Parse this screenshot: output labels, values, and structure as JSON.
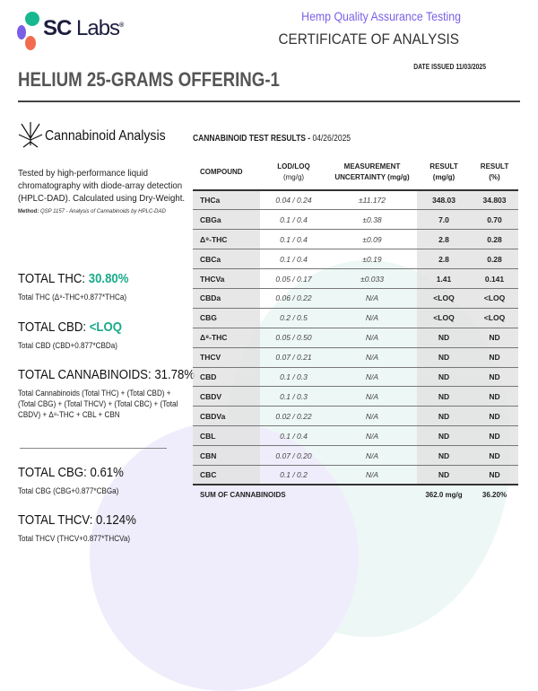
{
  "header": {
    "logo_text_bold": "SC",
    "logo_text": "Labs",
    "registered": "®",
    "subtitle": "Hemp Quality Assurance Testing",
    "doc_type": "CERTIFICATE OF ANALYSIS",
    "date_issued": "DATE ISSUED 11/03/2025",
    "product_title": "HELIUM 25-GRAMS OFFERING-1",
    "colors": {
      "brand_purple": "#7b5fe6",
      "accent_green": "#1aab8a"
    }
  },
  "analysis": {
    "icon": "cannabis-leaf-icon",
    "title": "Cannabinoid Analysis",
    "description": "Tested by high-performance liquid chromatography with diode-array detection (HPLC-DAD). Calculated using Dry-Weight.",
    "method_label": "Method:",
    "method_text": "QSP 1157 - Analysis of Cannabinoids by HPLC-DAD"
  },
  "totals": {
    "thc": {
      "label": "TOTAL THC:",
      "value": "30.80%",
      "formula": "Total THC (Δ⁹-THC+0.877*THCa)"
    },
    "cbd": {
      "label": "TOTAL CBD:",
      "value": "<LOQ",
      "formula": "Total CBD (CBD+0.877*CBDa)"
    },
    "cannabinoids": {
      "label": "TOTAL CANNABINOIDS:",
      "value": "31.78%",
      "formula": "Total Cannabinoids (Total THC) + (Total CBD) + (Total CBG) + (Total THCV) + (Total CBC) + (Total CBDV) + Δ⁸-THC + CBL + CBN"
    },
    "cbg": {
      "label": "TOTAL CBG:",
      "value": "0.61%",
      "formula": "Total CBG (CBG+0.877*CBGa)"
    },
    "thcv": {
      "label": "TOTAL THCV:",
      "value": "0.124%",
      "formula": "Total THCV (THCV+0.877*THCVa)"
    }
  },
  "results": {
    "title": "CANNABINOID TEST RESULTS -",
    "date": "04/26/2025",
    "headers": {
      "compound": "COMPOUND",
      "lod1": "LOD/LOQ",
      "lod2": "(mg/g)",
      "mu1": "MEASUREMENT",
      "mu2": "UNCERTAINTY (mg/g)",
      "rmg1": "RESULT",
      "rmg2": "(mg/g)",
      "rp1": "RESULT",
      "rp2": "(%)"
    },
    "rows": [
      [
        "THCa",
        "0.04 / 0.24",
        "±11.172",
        "348.03",
        "34.803"
      ],
      [
        "CBGa",
        "0.1 / 0.4",
        "±0.38",
        "7.0",
        "0.70"
      ],
      [
        "Δ⁹-THC",
        "0.1 / 0.4",
        "±0.09",
        "2.8",
        "0.28"
      ],
      [
        "CBCa",
        "0.1 / 0.4",
        "±0.19",
        "2.8",
        "0.28"
      ],
      [
        "THCVa",
        "0.05 / 0.17",
        "±0.033",
        "1.41",
        "0.141"
      ],
      [
        "CBDa",
        "0.06 / 0.22",
        "N/A",
        "<LOQ",
        "<LOQ"
      ],
      [
        "CBG",
        "0.2 / 0.5",
        "N/A",
        "<LOQ",
        "<LOQ"
      ],
      [
        "Δ⁸-THC",
        "0.05 / 0.50",
        "N/A",
        "ND",
        "ND"
      ],
      [
        "THCV",
        "0.07 / 0.21",
        "N/A",
        "ND",
        "ND"
      ],
      [
        "CBD",
        "0.1 / 0.3",
        "N/A",
        "ND",
        "ND"
      ],
      [
        "CBDV",
        "0.1 / 0.3",
        "N/A",
        "ND",
        "ND"
      ],
      [
        "CBDVa",
        "0.02 / 0.22",
        "N/A",
        "ND",
        "ND"
      ],
      [
        "CBL",
        "0.1 / 0.4",
        "N/A",
        "ND",
        "ND"
      ],
      [
        "CBN",
        "0.07 / 0.20",
        "N/A",
        "ND",
        "ND"
      ],
      [
        "CBC",
        "0.1 / 0.2",
        "N/A",
        "ND",
        "ND"
      ]
    ],
    "sum": {
      "label": "SUM OF CANNABINOIDS",
      "mg": "362.0 mg/g",
      "pct": "36.20%"
    }
  }
}
